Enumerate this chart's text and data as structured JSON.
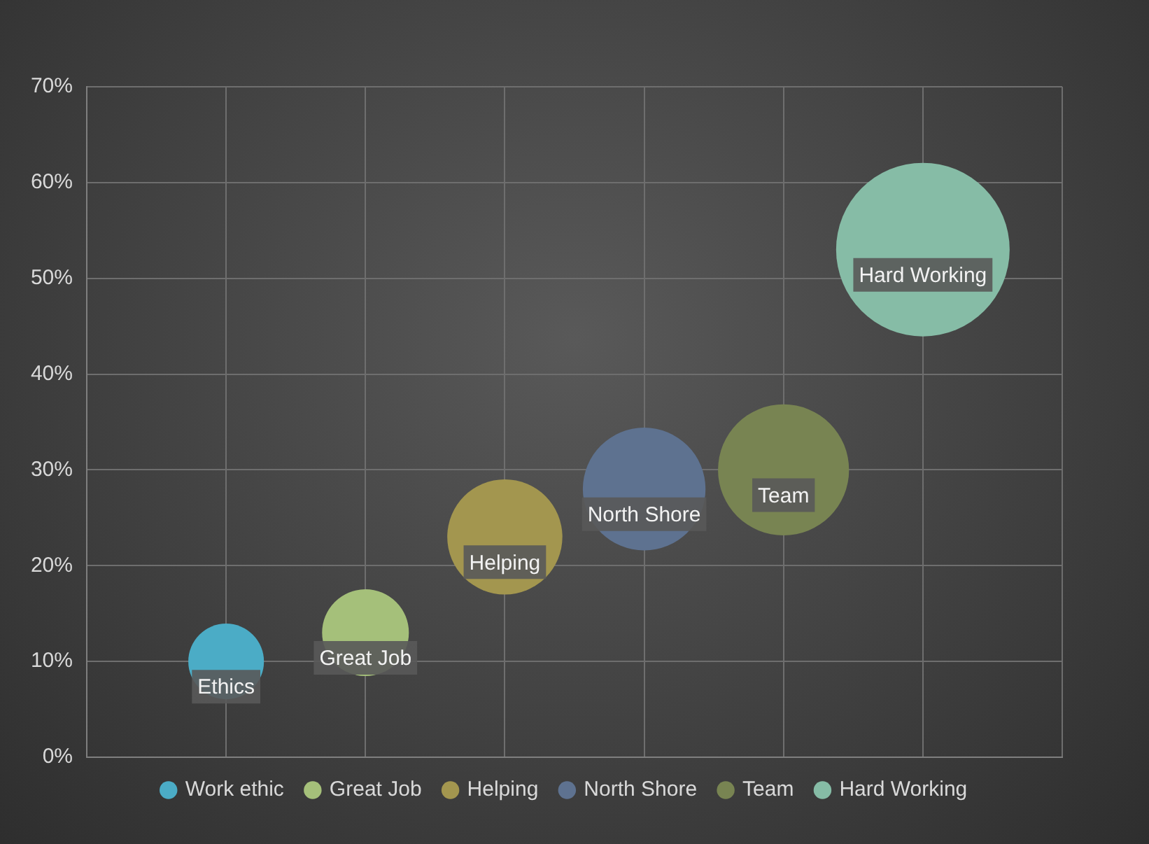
{
  "chart_data": {
    "type": "bubble",
    "categories": [
      null,
      null,
      null,
      null,
      null,
      null
    ],
    "ylim": [
      0,
      70
    ],
    "yticks": [
      {
        "value": 0,
        "label": "0%"
      },
      {
        "value": 10,
        "label": "10%"
      },
      {
        "value": 20,
        "label": "20%"
      },
      {
        "value": 30,
        "label": "30%"
      },
      {
        "value": 40,
        "label": "40%"
      },
      {
        "value": 50,
        "label": "50%"
      },
      {
        "value": 60,
        "label": "60%"
      },
      {
        "value": 70,
        "label": "70%"
      }
    ],
    "tick_labels": "y",
    "grid": true,
    "legend": "bottom",
    "series": [
      {
        "name": "Work ethic",
        "color": "#4bacc6",
        "values": [
          10,
          null,
          null,
          null,
          null,
          null
        ],
        "sizes": [
          0.19,
          null,
          null,
          null,
          null,
          null
        ]
      },
      {
        "name": "Great Job",
        "color": "#a5c07a",
        "values": [
          null,
          13,
          null,
          null,
          null,
          null
        ],
        "sizes": [
          null,
          0.25,
          null,
          null,
          null,
          null
        ]
      },
      {
        "name": "Helping",
        "color": "#a3964f",
        "values": [
          null,
          null,
          23,
          null,
          null,
          null
        ],
        "sizes": [
          null,
          null,
          0.44,
          null,
          null,
          null
        ]
      },
      {
        "name": "North Shore",
        "color": "#5e7290",
        "values": [
          null,
          null,
          null,
          28,
          null,
          null
        ],
        "sizes": [
          null,
          null,
          null,
          0.5,
          null,
          null
        ]
      },
      {
        "name": "Team",
        "color": "#788452",
        "values": [
          null,
          null,
          null,
          null,
          30,
          null
        ],
        "sizes": [
          null,
          null,
          null,
          null,
          0.57,
          null
        ]
      },
      {
        "name": "Hard Working",
        "color": "#86bca6",
        "values": [
          null,
          null,
          null,
          null,
          null,
          53
        ],
        "sizes": [
          null,
          null,
          null,
          null,
          null,
          1
        ]
      }
    ],
    "annotations": [
      {
        "text": "Ethics",
        "y": 10
      },
      {
        "text": "Great Job",
        "y": 13
      },
      {
        "text": "Helping",
        "y": 23
      },
      {
        "text": "North Shore",
        "y": 28
      },
      {
        "text": "Team",
        "y": 30
      },
      {
        "text": "Hard Working",
        "y": 53
      }
    ]
  }
}
